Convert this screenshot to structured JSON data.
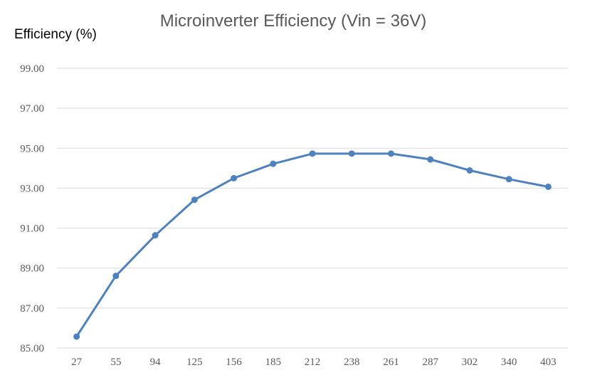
{
  "chart_data": {
    "type": "line",
    "title": "Microinverter Efficiency (Vin = 36V)",
    "xlabel": "",
    "ylabel": "Efficiency (%)",
    "categories": [
      "27",
      "55",
      "94",
      "125",
      "156",
      "185",
      "212",
      "238",
      "261",
      "287",
      "302",
      "340",
      "403"
    ],
    "series": [
      {
        "name": "Efficiency",
        "values": [
          85.57,
          88.61,
          90.64,
          92.42,
          93.5,
          94.22,
          94.73,
          94.73,
          94.73,
          94.44,
          93.89,
          93.45,
          93.07
        ]
      }
    ],
    "ylim": [
      85,
      99
    ],
    "yticks": [
      "85.00",
      "87.00",
      "89.00",
      "91.00",
      "93.00",
      "95.00",
      "97.00",
      "99.00"
    ],
    "ytick_values": [
      85,
      87,
      89,
      91,
      93,
      95,
      97,
      99
    ],
    "grid": true,
    "legend": "none",
    "colors": {
      "series": "#4f81bd",
      "grid": "#d9d9d9",
      "text": "#595959"
    }
  }
}
